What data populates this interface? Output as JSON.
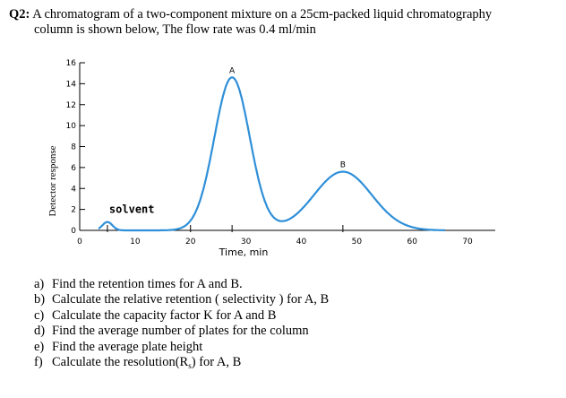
{
  "question": {
    "number": "Q2:",
    "text_line1": "A chromatogram of a two-component mixture on a 25cm-packed liquid chromatography",
    "text_line2": "column is shown below, The flow rate  was 0.4 ml/min"
  },
  "chart_data": {
    "type": "line",
    "ylabel": "Detector response",
    "xlabel": "Time, min",
    "xlim": [
      0,
      75
    ],
    "ylim": [
      0,
      16
    ],
    "x_ticks": [
      "0",
      "10",
      "20",
      "30",
      "40",
      "50",
      "60",
      "70"
    ],
    "y_ticks": [
      "0",
      "2",
      "4",
      "6",
      "8",
      "10",
      "12",
      "14",
      "16"
    ],
    "grid": false,
    "annotations": [
      {
        "label": "solvent",
        "x": 5,
        "y": 0.8
      },
      {
        "label": "A",
        "x": 27.5,
        "y": 14.6
      },
      {
        "label": "B",
        "x": 47.5,
        "y": 5.6
      }
    ],
    "peaks": [
      {
        "name": "solvent",
        "retention_time": 5,
        "height": 0.8
      },
      {
        "name": "A",
        "retention_time": 27.5,
        "height": 14.6
      },
      {
        "name": "B",
        "retention_time": 47.5,
        "height": 5.6
      }
    ],
    "baseline_markers_x": [
      5,
      20,
      27.5,
      47.5
    ]
  },
  "parts": [
    {
      "letter": "a)",
      "text": "Find the retention times for A and B."
    },
    {
      "letter": "b)",
      "text": "Calculate the relative retention ( selectivity ) for A, B"
    },
    {
      "letter": "c)",
      "text": "Calculate the capacity factor K for A and B"
    },
    {
      "letter": "d)",
      "text": "Find the average number of plates for the column"
    },
    {
      "letter": "e)",
      "text": "Find the average plate height"
    },
    {
      "letter": "f)",
      "text_pre": "Calculate the resolution(R",
      "subscript": "s",
      "text_post": ") for A, B"
    }
  ]
}
